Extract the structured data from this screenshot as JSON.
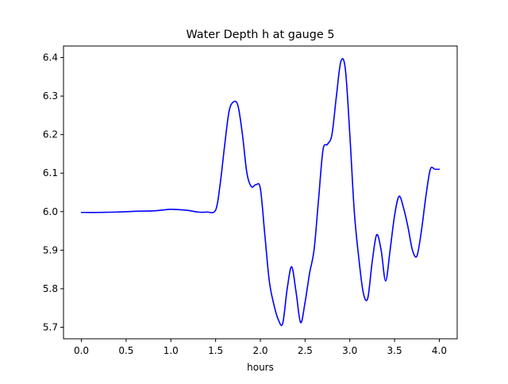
{
  "chart_data": {
    "type": "line",
    "title": "Water Depth h at gauge 5",
    "xlabel": "hours",
    "ylabel": "",
    "xlim": [
      -0.2,
      4.2
    ],
    "ylim": [
      5.67,
      6.43
    ],
    "x_ticks": [
      0.0,
      0.5,
      1.0,
      1.5,
      2.0,
      2.5,
      3.0,
      3.5,
      4.0
    ],
    "x_tick_labels": [
      "0.0",
      "0.5",
      "1.0",
      "1.5",
      "2.0",
      "2.5",
      "3.0",
      "3.5",
      "4.0"
    ],
    "y_ticks": [
      5.7,
      5.8,
      5.9,
      6.0,
      6.1,
      6.2,
      6.3,
      6.4
    ],
    "y_tick_labels": [
      "5.7",
      "5.8",
      "5.9",
      "6.0",
      "6.1",
      "6.2",
      "6.3",
      "6.4"
    ],
    "grid": false,
    "line_color": "#0000ff",
    "series": [
      {
        "x": [
          0.0,
          0.2,
          0.4,
          0.6,
          0.8,
          0.9,
          1.0,
          1.1,
          1.2,
          1.3,
          1.4,
          1.5,
          1.55,
          1.6,
          1.65,
          1.7,
          1.75,
          1.8,
          1.85,
          1.9,
          1.95,
          2.0,
          2.05,
          2.1,
          2.15,
          2.2,
          2.25,
          2.3,
          2.35,
          2.4,
          2.45,
          2.5,
          2.55,
          2.6,
          2.65,
          2.7,
          2.75,
          2.8,
          2.85,
          2.9,
          2.95,
          3.0,
          3.05,
          3.1,
          3.15,
          3.2,
          3.25,
          3.3,
          3.35,
          3.4,
          3.45,
          3.5,
          3.55,
          3.6,
          3.65,
          3.7,
          3.75,
          3.8,
          3.85,
          3.9,
          3.95,
          4.0
        ],
        "y": [
          5.998,
          5.998,
          5.999,
          6.001,
          6.002,
          6.004,
          6.006,
          6.005,
          6.003,
          5.999,
          5.999,
          6.004,
          6.07,
          6.17,
          6.26,
          6.285,
          6.275,
          6.2,
          6.1,
          6.065,
          6.07,
          6.06,
          5.94,
          5.82,
          5.76,
          5.72,
          5.71,
          5.8,
          5.857,
          5.79,
          5.712,
          5.765,
          5.84,
          5.9,
          6.03,
          6.16,
          6.175,
          6.2,
          6.3,
          6.39,
          6.37,
          6.2,
          6.0,
          5.88,
          5.79,
          5.775,
          5.87,
          5.94,
          5.9,
          5.82,
          5.9,
          5.99,
          6.04,
          6.01,
          5.96,
          5.9,
          5.885,
          5.95,
          6.04,
          6.11,
          6.11,
          6.11
        ]
      }
    ]
  }
}
